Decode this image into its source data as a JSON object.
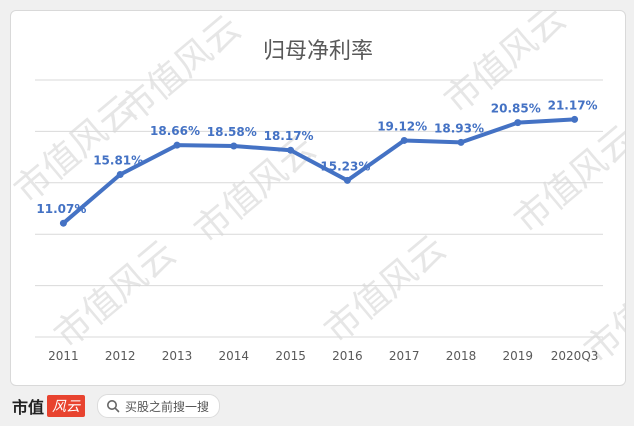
{
  "chart_data": {
    "type": "line",
    "title": "归母净利率",
    "categories": [
      "2011",
      "2012",
      "2013",
      "2014",
      "2015",
      "2016",
      "2017",
      "2018",
      "2019",
      "2020Q3"
    ],
    "series": [
      {
        "values": [
          11.07,
          15.81,
          18.66,
          18.58,
          18.17,
          15.23,
          19.12,
          18.93,
          20.85,
          21.17
        ],
        "data_labels": [
          "11.07%",
          "15.81%",
          "18.66%",
          "18.58%",
          "18.17%",
          "15.23%",
          "19.12%",
          "18.93%",
          "20.85%",
          "21.17%"
        ],
        "color": "#4472c4"
      }
    ],
    "ylim": [
      0,
      25
    ],
    "grid": true,
    "legend": "none"
  },
  "watermark": {
    "text": "市值风云"
  },
  "footer": {
    "brand_text": "市值",
    "brand_mark": "风云",
    "search_text": "买股之前搜一搜",
    "search_icon": "search-icon"
  },
  "colors": {
    "line": "#4472c4",
    "grid": "#d9d9d9",
    "label": "#4472c4",
    "axis_text": "#595959"
  }
}
